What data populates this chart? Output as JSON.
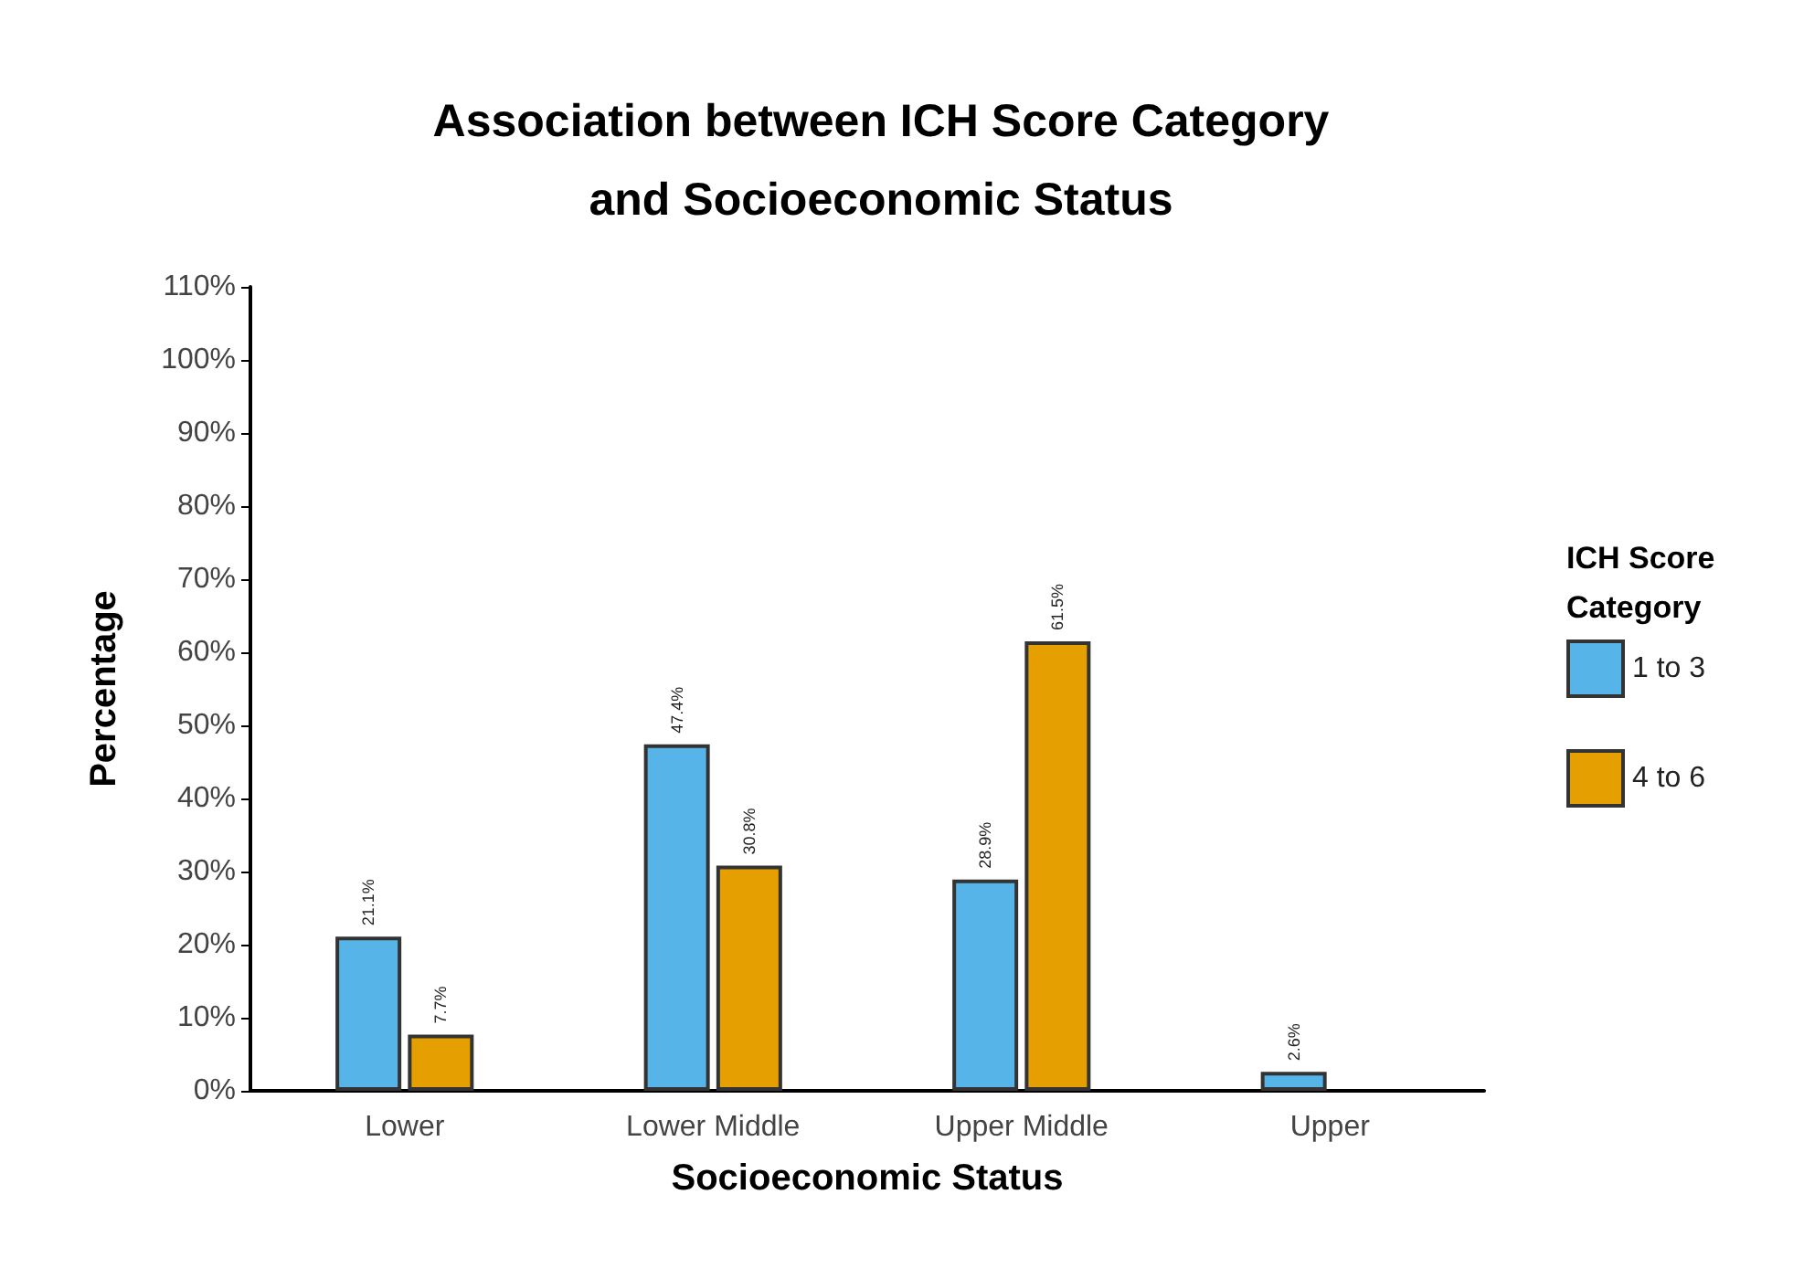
{
  "chart_data": {
    "type": "bar",
    "title": "Association between ICH Score Category\nand Socioeconomic Status",
    "xlabel": "Socioeconomic Status",
    "ylabel": "Percentage",
    "legend_title": "ICH Score Category",
    "categories": [
      "Lower",
      "Lower Middle",
      "Upper Middle",
      "Upper"
    ],
    "series": [
      {
        "name": "1 to 3",
        "color": "#56b4e9",
        "values": [
          21.1,
          47.4,
          28.9,
          2.6
        ],
        "value_labels": [
          "21.1%",
          "47.4%",
          "28.9%",
          "2.6%"
        ]
      },
      {
        "name": "4 to 6",
        "color": "#e69f00",
        "values": [
          7.7,
          30.8,
          61.5,
          null
        ],
        "value_labels": [
          "7.7%",
          "30.8%",
          "61.5%",
          null
        ]
      }
    ],
    "ylim": [
      0,
      110
    ],
    "yticks": [
      {
        "value": 0,
        "label": "0%"
      },
      {
        "value": 10,
        "label": "10%"
      },
      {
        "value": 20,
        "label": "20%"
      },
      {
        "value": 30,
        "label": "30%"
      },
      {
        "value": 40,
        "label": "40%"
      },
      {
        "value": 50,
        "label": "50%"
      },
      {
        "value": 60,
        "label": "60%"
      },
      {
        "value": 70,
        "label": "70%"
      },
      {
        "value": 80,
        "label": "80%"
      },
      {
        "value": 90,
        "label": "90%"
      },
      {
        "value": 100,
        "label": "100%"
      },
      {
        "value": 110,
        "label": "110%"
      }
    ],
    "grid": false,
    "legend": "right"
  }
}
